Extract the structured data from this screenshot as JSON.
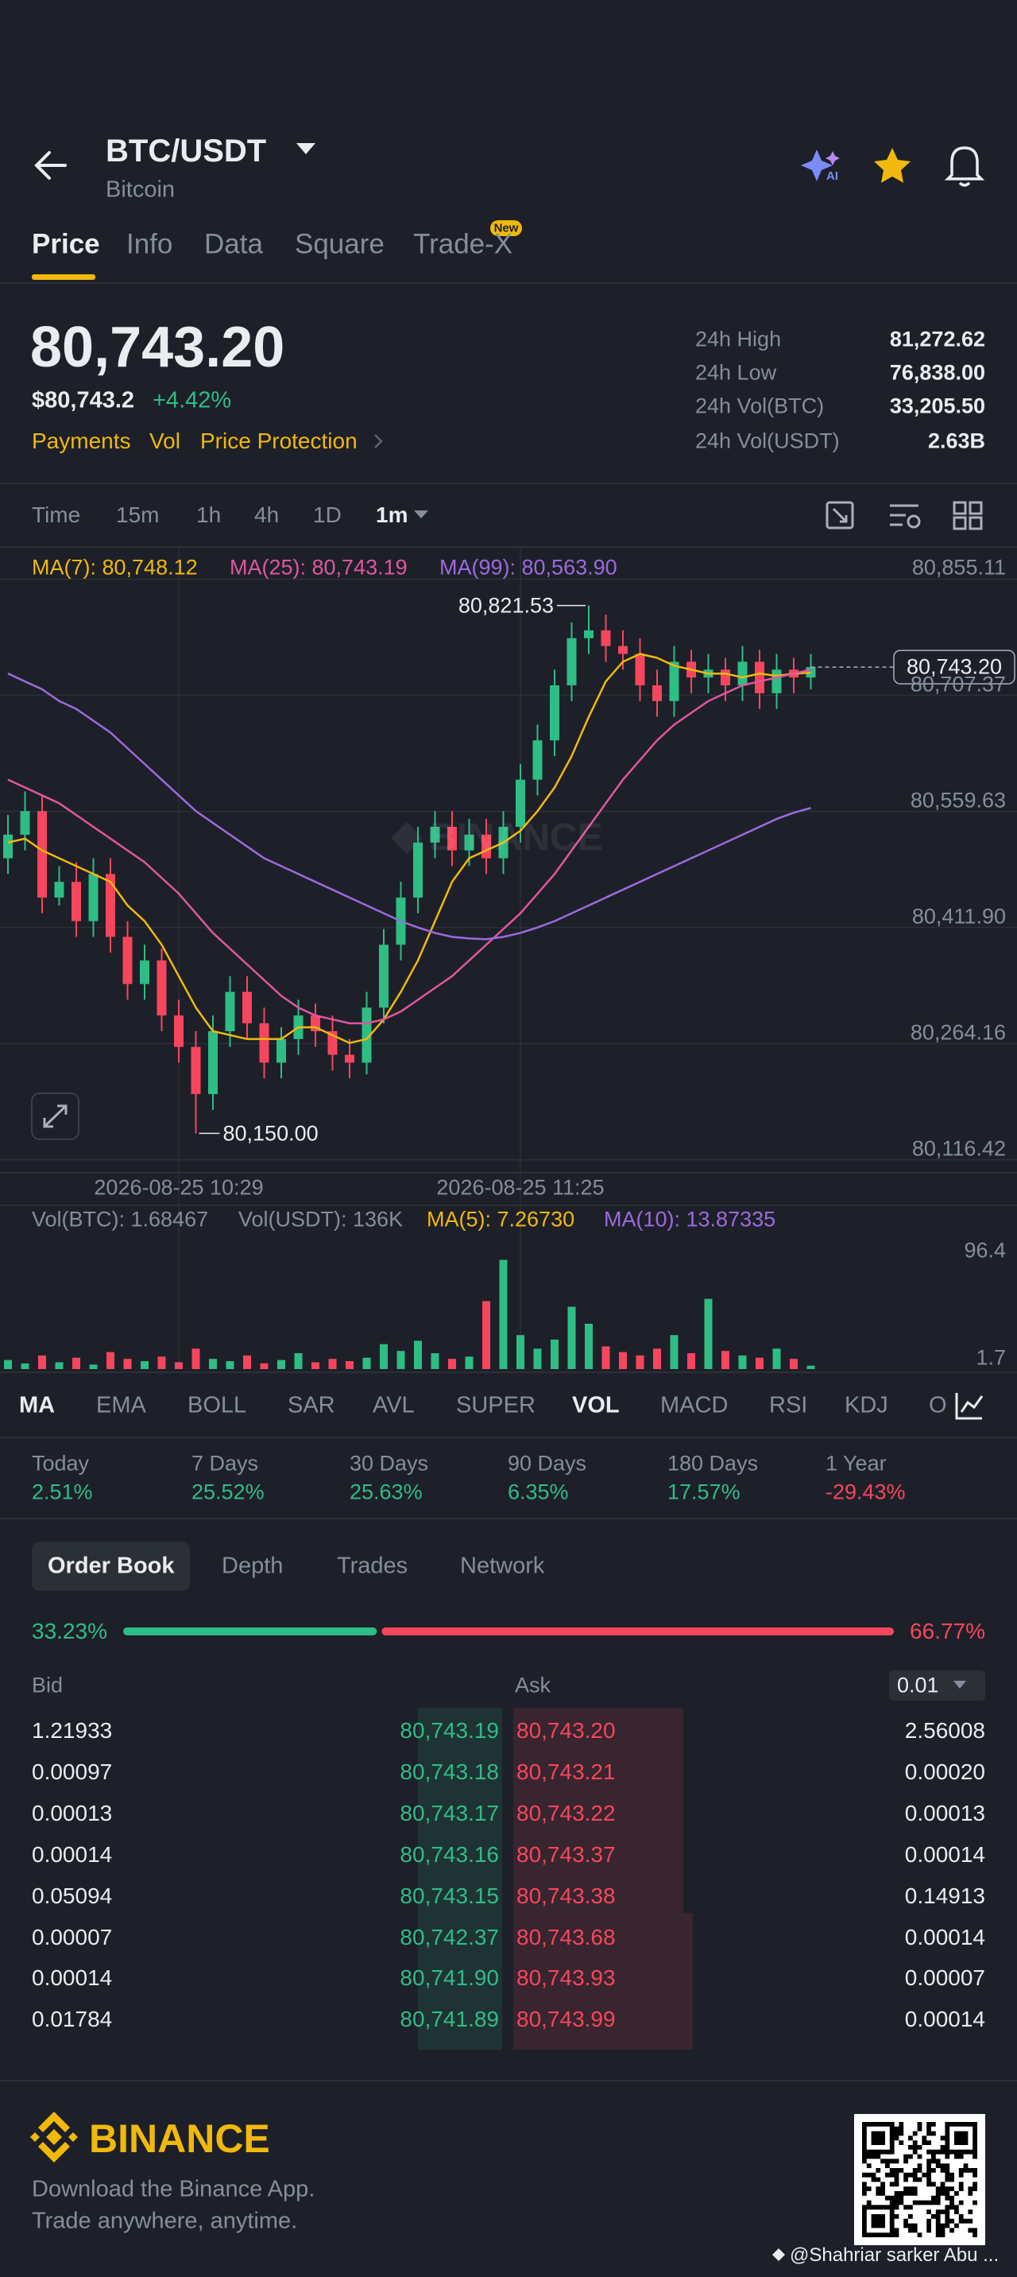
{
  "header": {
    "pair": "BTC/USDT",
    "name": "Bitcoin"
  },
  "tabs": [
    "Price",
    "Info",
    "Data",
    "Square",
    "Trade-X"
  ],
  "tab_badge": "New",
  "price": {
    "last": "80,743.20",
    "usd": "$80,743.2",
    "change": "+4.42%",
    "links": [
      "Payments",
      "Vol",
      "Price Protection"
    ]
  },
  "stats": [
    [
      "24h High",
      "81,272.62"
    ],
    [
      "24h Low",
      "76,838.00"
    ],
    [
      "24h Vol(BTC)",
      "33,205.50"
    ],
    [
      "24h Vol(USDT)",
      "2.63B"
    ]
  ],
  "intervals": [
    "Time",
    "15m",
    "1h",
    "4h",
    "1D",
    "1m"
  ],
  "chart_watermark": "BINANCE",
  "chart_data": [
    {
      "type": "candlestick",
      "categories": [
        null,
        null,
        null,
        null,
        null,
        null,
        null,
        null,
        null,
        null,
        "2026-08-25 10:29",
        null,
        null,
        null,
        null,
        null,
        null,
        null,
        null,
        null,
        null,
        null,
        null,
        null,
        null,
        null,
        null,
        null,
        null,
        null,
        "2026-08-25 11:25",
        null,
        null,
        null,
        null,
        null,
        null,
        null,
        null,
        null,
        null,
        null,
        null,
        null,
        null,
        null,
        null,
        null
      ],
      "open": [
        80500,
        80530,
        80560,
        80450,
        80470,
        80420,
        80480,
        80400,
        80340,
        80370,
        80300,
        80260,
        80200,
        80280,
        80330,
        80290,
        80240,
        80270,
        80300,
        80280,
        80250,
        80240,
        80310,
        80390,
        80450,
        80520,
        80540,
        80510,
        80530,
        80500,
        80540,
        80600,
        80650,
        80720,
        80780,
        80790,
        80770,
        80760,
        80720,
        80700,
        80750,
        80730,
        80740,
        80720,
        80750,
        80710,
        80740,
        80730
      ],
      "high": [
        80555,
        80585,
        80580,
        80490,
        80495,
        80500,
        80500,
        80420,
        80390,
        80385,
        80320,
        80280,
        80300,
        80350,
        80350,
        80310,
        80285,
        80320,
        80315,
        80300,
        80270,
        80330,
        80410,
        80470,
        80540,
        80560,
        80560,
        80550,
        80550,
        80560,
        80620,
        80670,
        80740,
        80800,
        80821.53,
        80810,
        80790,
        80780,
        80740,
        80770,
        80765,
        80760,
        80755,
        80770,
        80765,
        80760,
        80755,
        80760
      ],
      "low": [
        80480,
        80510,
        80430,
        80440,
        80400,
        80400,
        80380,
        80320,
        80320,
        80280,
        80240,
        80150,
        80180,
        80260,
        80270,
        80220,
        80220,
        80250,
        80260,
        80230,
        80220,
        80225,
        80290,
        80370,
        80430,
        80500,
        80490,
        80490,
        80480,
        80480,
        80520,
        80580,
        80630,
        80700,
        80760,
        80750,
        80740,
        80700,
        80680,
        80680,
        80710,
        80710,
        80700,
        80700,
        80690,
        80690,
        80710,
        80715
      ],
      "close": [
        80530,
        80560,
        80450,
        80470,
        80420,
        80480,
        80400,
        80340,
        80370,
        80300,
        80260,
        80200,
        80280,
        80330,
        80290,
        80240,
        80270,
        80300,
        80280,
        80250,
        80240,
        80310,
        80390,
        80450,
        80520,
        80540,
        80510,
        80530,
        80500,
        80540,
        80600,
        80650,
        80720,
        80780,
        80790,
        80770,
        80760,
        80720,
        80700,
        80750,
        80730,
        80740,
        80720,
        80750,
        80710,
        80740,
        80730,
        80743.2
      ],
      "up_color": "#2ebd85",
      "down_color": "#f6465d",
      "series": [
        {
          "name": "MA(7): 80,748.12",
          "color": "#f0b90b",
          "values": [
            80520,
            80525,
            80510,
            80500,
            80490,
            80480,
            80470,
            80440,
            80420,
            80390,
            80350,
            80310,
            80280,
            80275,
            80270,
            80270,
            80270,
            80285,
            80285,
            80275,
            80265,
            80270,
            80295,
            80330,
            80370,
            80420,
            80470,
            80500,
            80510,
            80520,
            80535,
            80560,
            80590,
            80630,
            80680,
            80725,
            80750,
            80760,
            80755,
            80745,
            80740,
            80735,
            80735,
            80730,
            80735,
            80732,
            80735,
            80736
          ]
        },
        {
          "name": "MA(25): 80,743.19",
          "color": "#e056a0",
          "values": [
            80600,
            80590,
            80580,
            80570,
            80555,
            80540,
            80525,
            80510,
            80495,
            80475,
            80455,
            80430,
            80405,
            80385,
            80365,
            80345,
            80325,
            80310,
            80300,
            80295,
            80290,
            80290,
            80295,
            80305,
            80320,
            80335,
            80350,
            80370,
            80390,
            80410,
            80430,
            80455,
            80480,
            80510,
            80540,
            80570,
            80600,
            80625,
            80650,
            80670,
            80685,
            80700,
            80710,
            80720,
            80725,
            80730,
            80735,
            80740
          ]
        },
        {
          "name": "MA(99): 80,563.90",
          "color": "#9c6ade",
          "values": [
            80735,
            80725,
            80715,
            80700,
            80690,
            80675,
            80660,
            80640,
            80620,
            80600,
            80580,
            80560,
            80545,
            80530,
            80515,
            80500,
            80490,
            80480,
            80470,
            80460,
            80450,
            80440,
            80430,
            80420,
            80412,
            80405,
            80400,
            80398,
            80397,
            80400,
            80405,
            80412,
            80420,
            80430,
            80440,
            80450,
            80460,
            80470,
            80480,
            80490,
            80500,
            80510,
            80520,
            80530,
            80540,
            80550,
            80558,
            80564
          ]
        }
      ],
      "ylim": [
        80102,
        80894
      ],
      "yticks": [
        {
          "value": 80855.11,
          "label": "80,855.11"
        },
        {
          "value": 80707.37,
          "label": "80,707.37"
        },
        {
          "value": 80559.63,
          "label": "80,559.63"
        },
        {
          "value": 80411.9,
          "label": "80,411.90"
        },
        {
          "value": 80264.16,
          "label": "80,264.16"
        },
        {
          "value": 80116.42,
          "label": "80,116.42"
        }
      ],
      "high_label": "80,821.53",
      "low_label": "80,150.00",
      "last_price": {
        "value": 80743.2,
        "label": "80,743.20"
      },
      "grid": true
    },
    {
      "type": "bar",
      "legend": [
        "Vol(BTC): 1.68467",
        "Vol(USDT): 136K",
        "MA(5): 7.26730",
        "MA(10): 13.87335"
      ],
      "legend_colors": [
        "#848e9c",
        "#848e9c",
        "#f0b90b",
        "#9c6ade"
      ],
      "values": [
        8,
        5,
        12,
        6,
        10,
        4,
        15,
        9,
        7,
        11,
        6,
        18,
        9,
        7,
        12,
        5,
        8,
        14,
        6,
        9,
        7,
        10,
        22,
        16,
        25,
        14,
        9,
        11,
        60,
        96.4,
        30,
        18,
        26,
        55,
        40,
        20,
        15,
        12,
        18,
        30,
        14,
        62,
        16,
        12,
        10,
        18,
        9,
        3
      ],
      "ylim": [
        0,
        113
      ],
      "yticks": [
        96.4,
        1.7
      ]
    }
  ],
  "indicators": [
    "MA",
    "EMA",
    "BOLL",
    "SAR",
    "AVL",
    "SUPER",
    "VOL",
    "MACD",
    "RSI",
    "KDJ",
    "O"
  ],
  "performance": [
    [
      "Today",
      "2.51%"
    ],
    [
      "7 Days",
      "25.52%"
    ],
    [
      "30 Days",
      "25.63%"
    ],
    [
      "90 Days",
      "6.35%"
    ],
    [
      "180 Days",
      "17.57%"
    ],
    [
      "1 Year",
      "-29.43%"
    ]
  ],
  "order_book": {
    "tabs": [
      "Order Book",
      "Depth",
      "Trades",
      "Network"
    ],
    "ratio": {
      "values": [
        33.23,
        66.77
      ],
      "value_labels": [
        "33.23%",
        "66.77%"
      ]
    },
    "bid_header": "Bid",
    "ask_header": "Ask",
    "precision": "0.01",
    "rows": [
      {
        "bid_amount": "1.21933",
        "bid_price": "80,743.19",
        "ask_price": "80,743.20",
        "ask_amount": "2.56008"
      },
      {
        "bid_amount": "0.00097",
        "bid_price": "80,743.18",
        "ask_price": "80,743.21",
        "ask_amount": "0.00020"
      },
      {
        "bid_amount": "0.00013",
        "bid_price": "80,743.17",
        "ask_price": "80,743.22",
        "ask_amount": "0.00013"
      },
      {
        "bid_amount": "0.00014",
        "bid_price": "80,743.16",
        "ask_price": "80,743.37",
        "ask_amount": "0.00014"
      },
      {
        "bid_amount": "0.05094",
        "bid_price": "80,743.15",
        "ask_price": "80,743.38",
        "ask_amount": "0.14913"
      },
      {
        "bid_amount": "0.00007",
        "bid_price": "80,742.37",
        "ask_price": "80,743.68",
        "ask_amount": "0.00014"
      },
      {
        "bid_amount": "0.00014",
        "bid_price": "80,741.90",
        "ask_price": "80,743.93",
        "ask_amount": "0.00007"
      },
      {
        "bid_amount": "0.01784",
        "bid_price": "80,741.89",
        "ask_price": "80,743.99",
        "ask_amount": "0.00014"
      }
    ]
  },
  "footer": {
    "brand": "BINANCE",
    "line1": "Download the Binance App.",
    "line2": "Trade anywhere, anytime.",
    "watermark": "@Shahriar sarker Abu ..."
  }
}
